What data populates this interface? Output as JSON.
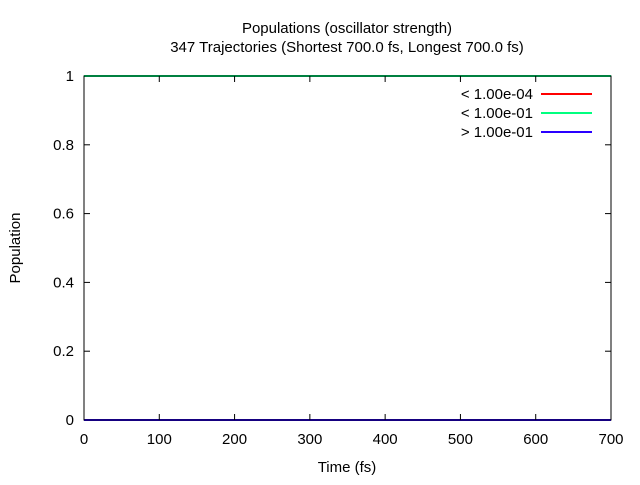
{
  "chart_data": {
    "type": "line",
    "title": "Populations (oscillator strength)",
    "subtitle": "347 Trajectories (Shortest 700.0 fs, Longest 700.0 fs)",
    "xlabel": "Time (fs)",
    "ylabel": "Population",
    "xlim": [
      0,
      700
    ],
    "ylim": [
      0,
      1
    ],
    "x_ticks": [
      "0",
      "100",
      "200",
      "300",
      "400",
      "500",
      "600",
      "700"
    ],
    "y_ticks": [
      "0",
      "0.2",
      "0.4",
      "0.6",
      "0.8",
      "1"
    ],
    "grid": false,
    "legend_position": "top-right",
    "series": [
      {
        "name": "< 1.00e-04",
        "color": "#ff0000",
        "x": [
          0,
          700
        ],
        "y": [
          0,
          0
        ]
      },
      {
        "name": "< 1.00e-01",
        "color": "#00ff7f",
        "x": [
          0,
          700
        ],
        "y": [
          1,
          1
        ]
      },
      {
        "name": "> 1.00e-01",
        "color": "#2a00ff",
        "x": [
          0,
          700
        ],
        "y": [
          0,
          0
        ]
      }
    ]
  }
}
